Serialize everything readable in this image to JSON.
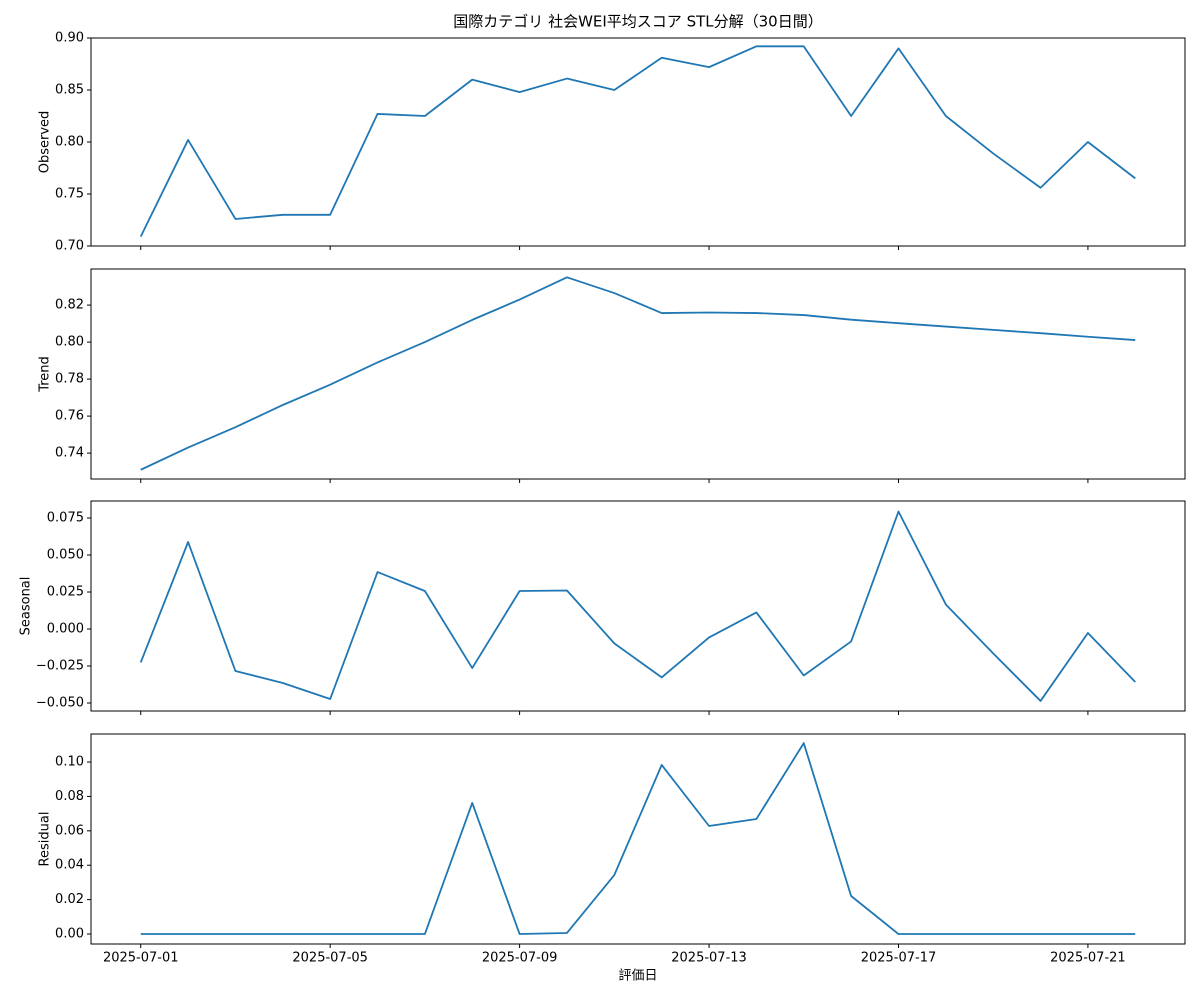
{
  "chart_data": [
    {
      "type": "line",
      "title": "国際カテゴリ 社会WEI平均スコア STL分解（30日間）",
      "ylabel": "Observed",
      "color": "#1f77b4",
      "x": [
        "2025-07-01",
        "2025-07-02",
        "2025-07-03",
        "2025-07-04",
        "2025-07-05",
        "2025-07-06",
        "2025-07-07",
        "2025-07-08",
        "2025-07-09",
        "2025-07-10",
        "2025-07-11",
        "2025-07-12",
        "2025-07-13",
        "2025-07-14",
        "2025-07-15",
        "2025-07-16",
        "2025-07-17",
        "2025-07-18",
        "2025-07-19",
        "2025-07-20",
        "2025-07-21",
        "2025-07-22"
      ],
      "values": [
        0.709,
        0.802,
        0.726,
        0.73,
        0.73,
        0.827,
        0.825,
        0.86,
        0.848,
        0.861,
        0.85,
        0.881,
        0.872,
        0.892,
        0.892,
        0.825,
        0.89,
        0.825,
        0.789,
        0.756,
        0.8,
        0.765
      ],
      "ylim": [
        0.7,
        0.9
      ],
      "yticks": [
        {
          "value": 0.7,
          "label": "0.70"
        },
        {
          "value": 0.75,
          "label": "0.75"
        },
        {
          "value": 0.8,
          "label": "0.80"
        },
        {
          "value": 0.85,
          "label": "0.85"
        },
        {
          "value": 0.9,
          "label": "0.90"
        }
      ],
      "xticks": [
        "2025-07-01",
        "2025-07-05",
        "2025-07-09",
        "2025-07-13",
        "2025-07-17",
        "2025-07-21"
      ]
    },
    {
      "type": "line",
      "ylabel": "Trend",
      "color": "#1f77b4",
      "x": [
        "2025-07-01",
        "2025-07-02",
        "2025-07-03",
        "2025-07-04",
        "2025-07-05",
        "2025-07-06",
        "2025-07-07",
        "2025-07-08",
        "2025-07-09",
        "2025-07-10",
        "2025-07-11",
        "2025-07-12",
        "2025-07-13",
        "2025-07-14",
        "2025-07-15",
        "2025-07-16",
        "2025-07-17",
        "2025-07-18",
        "2025-07-19",
        "2025-07-20",
        "2025-07-21",
        "2025-07-22"
      ],
      "values": [
        0.731,
        0.743,
        0.754,
        0.766,
        0.777,
        0.789,
        0.8,
        0.812,
        0.823,
        0.835,
        0.8265,
        0.8157,
        0.816,
        0.8157,
        0.8146,
        0.8121,
        0.8102,
        0.8084,
        0.8066,
        0.8048,
        0.8029,
        0.8011
      ],
      "ylim": [
        0.726,
        0.8395
      ],
      "yticks": [
        {
          "value": 0.74,
          "label": "0.74"
        },
        {
          "value": 0.76,
          "label": "0.76"
        },
        {
          "value": 0.78,
          "label": "0.78"
        },
        {
          "value": 0.8,
          "label": "0.80"
        },
        {
          "value": 0.82,
          "label": "0.82"
        }
      ],
      "xticks": [
        "2025-07-01",
        "2025-07-05",
        "2025-07-09",
        "2025-07-13",
        "2025-07-17",
        "2025-07-21"
      ]
    },
    {
      "type": "line",
      "ylabel": "Seasonal",
      "color": "#1f77b4",
      "x": [
        "2025-07-01",
        "2025-07-02",
        "2025-07-03",
        "2025-07-04",
        "2025-07-05",
        "2025-07-06",
        "2025-07-07",
        "2025-07-08",
        "2025-07-09",
        "2025-07-10",
        "2025-07-11",
        "2025-07-12",
        "2025-07-13",
        "2025-07-14",
        "2025-07-15",
        "2025-07-16",
        "2025-07-17",
        "2025-07-18",
        "2025-07-19",
        "2025-07-20",
        "2025-07-21",
        "2025-07-22"
      ],
      "values": [
        -0.0226,
        0.0588,
        -0.0284,
        -0.0365,
        -0.0473,
        0.0385,
        0.0257,
        -0.0264,
        0.0257,
        0.026,
        -0.0097,
        -0.0327,
        -0.0057,
        0.0112,
        -0.0314,
        -0.0084,
        0.0794,
        0.0166,
        -0.0165,
        -0.0486,
        -0.0027,
        -0.0358
      ],
      "ylim": [
        -0.0554,
        0.0865
      ],
      "yticks": [
        {
          "value": -0.05,
          "label": "−0.050"
        },
        {
          "value": -0.025,
          "label": "−0.025"
        },
        {
          "value": 0,
          "label": "0.000"
        },
        {
          "value": 0.025,
          "label": "0.025"
        },
        {
          "value": 0.05,
          "label": "0.050"
        },
        {
          "value": 0.075,
          "label": "0.075"
        }
      ],
      "xticks": [
        "2025-07-01",
        "2025-07-05",
        "2025-07-09",
        "2025-07-13",
        "2025-07-17",
        "2025-07-21"
      ]
    },
    {
      "type": "line",
      "ylabel": "Residual",
      "xlabel": "評価日",
      "color": "#1f77b4",
      "x": [
        "2025-07-01",
        "2025-07-02",
        "2025-07-03",
        "2025-07-04",
        "2025-07-05",
        "2025-07-06",
        "2025-07-07",
        "2025-07-08",
        "2025-07-09",
        "2025-07-10",
        "2025-07-11",
        "2025-07-12",
        "2025-07-13",
        "2025-07-14",
        "2025-07-15",
        "2025-07-16",
        "2025-07-17",
        "2025-07-18",
        "2025-07-19",
        "2025-07-20",
        "2025-07-21",
        "2025-07-22"
      ],
      "values": [
        0,
        0,
        0,
        0,
        0,
        0,
        0,
        0.0762,
        0,
        0.0006,
        0.0343,
        0.0983,
        0.0628,
        0.0669,
        0.111,
        0.0221,
        0,
        0,
        0,
        0,
        0,
        0
      ],
      "ylim": [
        -0.0058,
        0.1163
      ],
      "yticks": [
        {
          "value": 0,
          "label": "0.00"
        },
        {
          "value": 0.02,
          "label": "0.02"
        },
        {
          "value": 0.04,
          "label": "0.04"
        },
        {
          "value": 0.06,
          "label": "0.06"
        },
        {
          "value": 0.08,
          "label": "0.08"
        },
        {
          "value": 0.1,
          "label": "0.10"
        }
      ],
      "xticks": [
        "2025-07-01",
        "2025-07-05",
        "2025-07-09",
        "2025-07-13",
        "2025-07-17",
        "2025-07-21"
      ],
      "show_xtick_labels": true
    }
  ]
}
